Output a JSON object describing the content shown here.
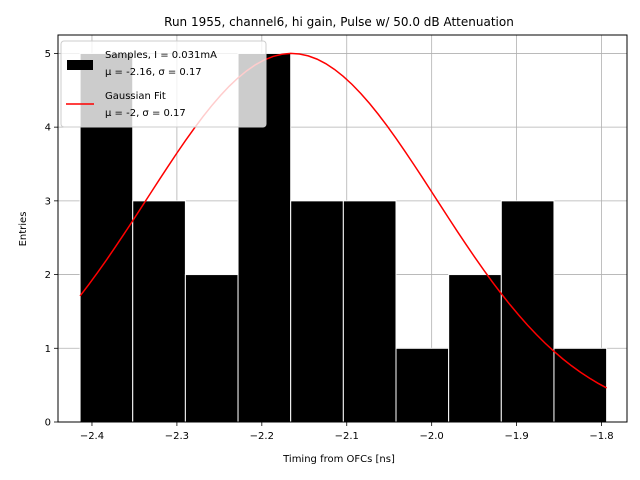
{
  "chart_data": {
    "type": "bar",
    "title": "Run 1955, channel6, hi gain, Pulse w/ 50.0 dB Attenuation",
    "xlabel": "Timing from OFCs [ns]",
    "ylabel": "Entries",
    "xlim": [
      -2.44,
      -1.77
    ],
    "ylim": [
      0,
      5.25
    ],
    "xticks": [
      -2.4,
      -2.3,
      -2.2,
      -2.1,
      -2.0,
      -1.9,
      -1.8
    ],
    "xtick_labels": [
      "−2.4",
      "−2.3",
      "−2.2",
      "−2.1",
      "−2.0",
      "−1.9",
      "−1.8"
    ],
    "yticks": [
      0,
      1,
      2,
      3,
      4,
      5
    ],
    "ytick_labels": [
      "0",
      "1",
      "2",
      "3",
      "4",
      "5"
    ],
    "grid": true,
    "legend_position": "top-left",
    "histogram": {
      "name": "Samples, I = 0.031mA",
      "stats_label": "μ = -2.16, σ = 0.17",
      "color": "#000000",
      "edge_color": "#ffffff",
      "bin_edges": [
        -2.414,
        -2.352,
        -2.29,
        -2.228,
        -2.166,
        -2.104,
        -2.042,
        -1.98,
        -1.918,
        -1.856,
        -1.794
      ],
      "counts": [
        5,
        3,
        2,
        5,
        3,
        3,
        1,
        2,
        3,
        1
      ]
    },
    "fit": {
      "name": "Gaussian Fit",
      "stats_label": "μ = -2, σ = 0.17",
      "color": "#ff0000",
      "mu": -2.165,
      "sigma": 0.17,
      "amplitude": 5.0,
      "x_range": [
        -2.414,
        -1.794
      ]
    }
  }
}
